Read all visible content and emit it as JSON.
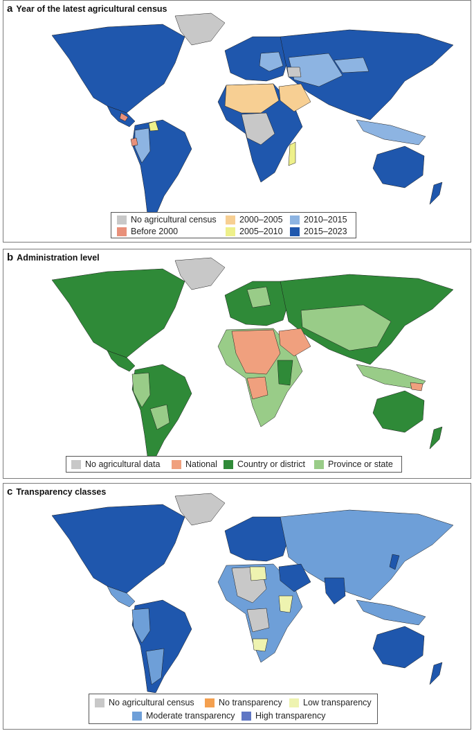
{
  "panels": [
    {
      "letter": "a",
      "title": "Year of the latest agricultural census",
      "legend": [
        {
          "label": "No agricultural census",
          "color": "#c8c8c8"
        },
        {
          "label": "Before 2000",
          "color": "#e8907a"
        },
        {
          "label": "2000–2005",
          "color": "#f7cf93"
        },
        {
          "label": "2005–2010",
          "color": "#eef08a"
        },
        {
          "label": "2010–2015",
          "color": "#8db4e2"
        },
        {
          "label": "2015–2023",
          "color": "#1f57ad"
        }
      ]
    },
    {
      "letter": "b",
      "title": "Administration level",
      "legend": [
        {
          "label": "No agricultural data",
          "color": "#c8c8c8"
        },
        {
          "label": "National",
          "color": "#f0a07e"
        },
        {
          "label": "Country or district",
          "color": "#2f8a38"
        },
        {
          "label": "Province or state",
          "color": "#99cc88"
        }
      ]
    },
    {
      "letter": "c",
      "title": "Transparency classes",
      "legend": [
        {
          "label": "No agricultural census",
          "color": "#c8c8c8"
        },
        {
          "label": "No transparency",
          "color": "#f4a04f"
        },
        {
          "label": "Low transparency",
          "color": "#eef3b0"
        },
        {
          "label": "Moderate transparency",
          "color": "#6e9fd8"
        },
        {
          "label": "High transparency",
          "color": "#5f76c4"
        }
      ]
    }
  ]
}
